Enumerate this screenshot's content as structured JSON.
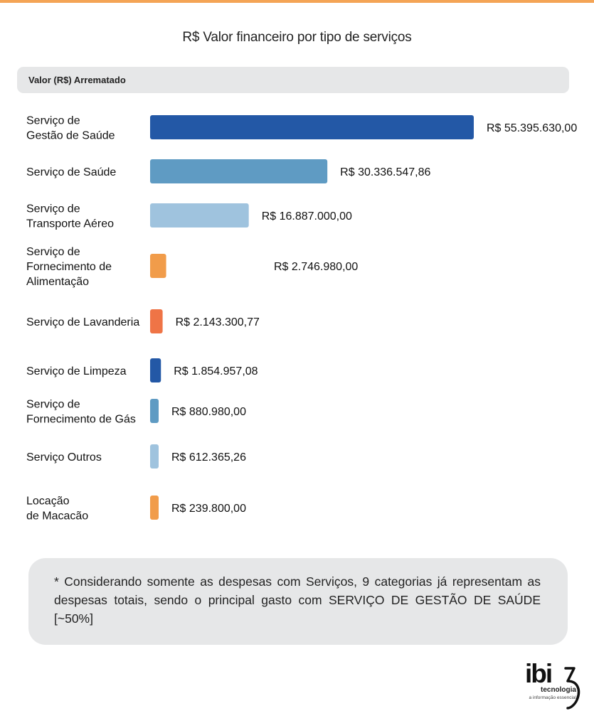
{
  "title": "R$ Valor financeiro por tipo de serviços",
  "section_header": "Valor (R$) Arrematado",
  "note": "* Considerando somente as despesas com Serviços, 9 categorias já representam as despesas totais, sendo o principal gasto com SERVIÇO DE GESTÃO DE SAÚDE [~50%]",
  "logo": {
    "word": "ibi",
    "sub": "tecnologia",
    "tagline": "a informação essencial"
  },
  "colors": {
    "accent_line": "#f4a455",
    "dark_blue": "#2358a6",
    "mid_blue": "#5f9bc3",
    "light_blue": "#9fc3de",
    "orange": "#f19c4a",
    "red_orange": "#ef7446"
  },
  "chart_data": {
    "type": "bar",
    "orientation": "horizontal",
    "title": "R$ Valor financeiro por tipo de serviços",
    "xlabel": "",
    "ylabel": "",
    "grid": false,
    "categories": [
      [
        "Serviço de",
        "Gestão de Saúde"
      ],
      [
        "Serviço de Saúde"
      ],
      [
        "Serviço de",
        "Transporte Aéreo"
      ],
      [
        "Serviço de",
        "Fornecimento de",
        "Alimentação"
      ],
      [
        "Serviço de Lavanderia"
      ],
      [
        "Serviço de Limpeza"
      ],
      [
        "Serviço de",
        "Fornecimento de Gás"
      ],
      [
        "Serviço Outros"
      ],
      [
        "Locação",
        "de Macacão"
      ]
    ],
    "values": [
      55395630.0,
      30336547.86,
      16887000.0,
      2746980.0,
      2143300.77,
      1854957.08,
      880980.0,
      612365.26,
      239800.0
    ],
    "value_labels": [
      "R$ 55.395.630,00",
      "R$ 30.336.547,86",
      "R$ 16.887.000,00",
      "R$ 2.746.980,00",
      "R$ 2.143.300,77",
      "R$ 1.854.957,08",
      "R$ 880.980,00",
      "R$ 612.365,26",
      "R$ 239.800,00"
    ],
    "bar_colors": [
      "#2358a6",
      "#5f9bc3",
      "#9fc3de",
      "#f19c4a",
      "#ef7446",
      "#2358a6",
      "#5f9bc3",
      "#9fc3de",
      "#f19c4a"
    ]
  }
}
